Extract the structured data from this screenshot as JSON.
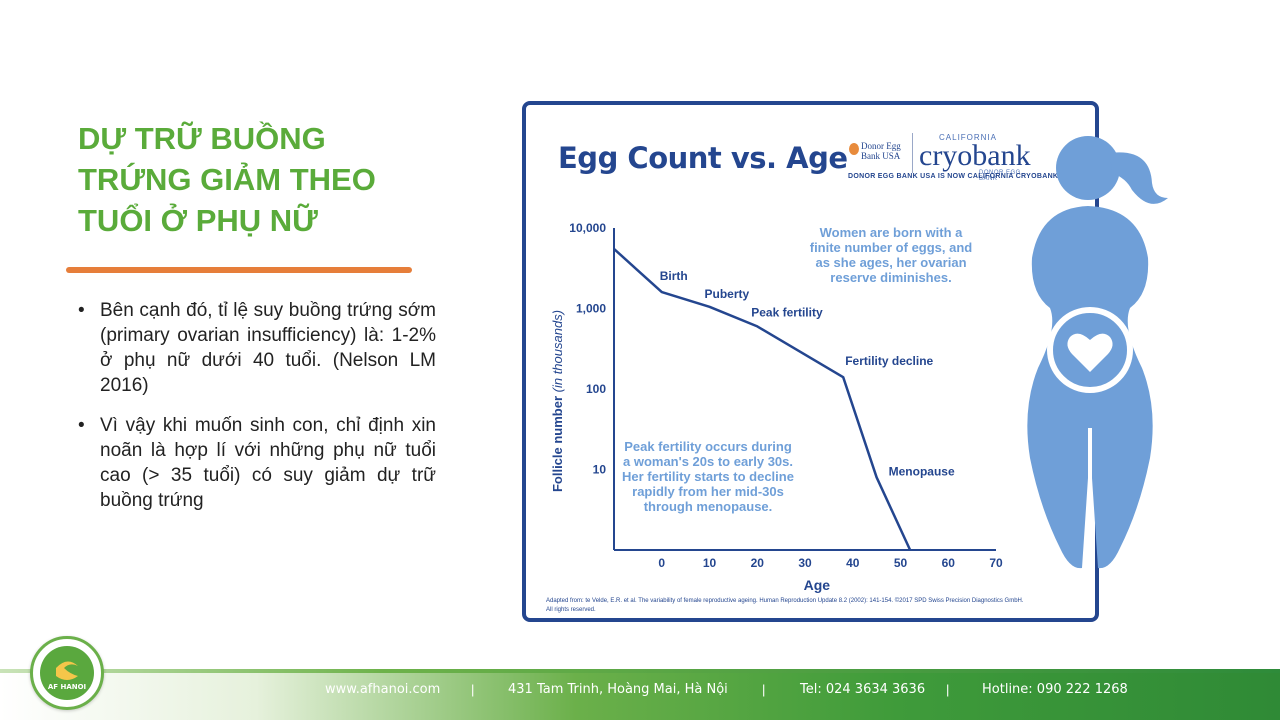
{
  "slide": {
    "title": "DỰ TRỮ BUỒNG TRỨNG GIẢM THEO TUỔI Ở PHỤ NỮ",
    "bullets": [
      "Bên cạnh đó, tỉ lệ suy buồng trứng sớm (primary ovarian insufficiency) là: 1-2% ở phụ nữ dưới 40 tuổi. (Nelson LM 2016)",
      "Vì vậy khi muốn sinh con, chỉ định xin noãn là hợp lí với những phụ nữ tuổi cao (> 35 tuổi) có suy giảm dự trữ buồng trứng"
    ],
    "bullet_glyph": "•",
    "accent_green": "#5aab3a",
    "accent_orange": "#e67e3a"
  },
  "infographic": {
    "title": "Egg Count vs. Age",
    "logo_donor": "Donor Egg Bank USA",
    "logo_california": "CALIFORNIA",
    "logo_cryobank": "cryobank",
    "logo_sub": "DONOR EGG BANK",
    "logo_note": "DONOR EGG BANK USA IS NOW CALIFORNIA CRYOBANK",
    "credit_line1": "Adapted from: te Velde, E.R. et al. The variability of female reproductive ageing.  Human Reproduction Update 8.2 (2002): 141-154. ©2017 SPD Swiss Precision Diagnostics GmbH.",
    "credit_line2": "All rights reserved.",
    "woman_icon": "woman-silhouette-heart-icon",
    "brand_navy": "#24468f",
    "brand_light_blue": "#6f9fd8"
  },
  "chart_data": {
    "type": "line",
    "title": "Egg Count vs. Age",
    "xlabel": "Age",
    "ylabel_main": "Follicle number",
    "ylabel_unit": "(in thousands)",
    "y_scale": "log",
    "x_ticks": [
      0,
      10,
      20,
      30,
      40,
      50,
      60,
      70
    ],
    "y_ticks": [
      {
        "value": 10,
        "label": "10"
      },
      {
        "value": 100,
        "label": "100"
      },
      {
        "value": 1000,
        "label": "1,000"
      },
      {
        "value": 10000,
        "label": "10,000"
      }
    ],
    "xlim": [
      -10,
      70
    ],
    "ylim": [
      1,
      10000
    ],
    "series": [
      {
        "points": [
          {
            "x": -10,
            "y": 5500
          },
          {
            "x": 0,
            "y": 1600
          },
          {
            "x": 10,
            "y": 1050
          },
          {
            "x": 20,
            "y": 600
          },
          {
            "x": 38,
            "y": 140
          },
          {
            "x": 45,
            "y": 8
          },
          {
            "x": 52,
            "y": 1
          }
        ]
      }
    ],
    "annotations": [
      {
        "label": "Birth",
        "x": 0,
        "y": 1600
      },
      {
        "label": "Puberty",
        "x": 10,
        "y": 1050
      },
      {
        "label": "Peak fertility",
        "x": 20,
        "y": 600
      },
      {
        "label": "Fertility decline",
        "x": 38,
        "y": 140
      },
      {
        "label": "Menopause",
        "x": 45,
        "y": 8
      }
    ],
    "notes": [
      "Women are born with a finite number of eggs, and as she ages, her ovarian reserve diminishes.",
      "Peak fertility occurs during a woman's 20s to early 30s. Her fertility starts to decline rapidly from her mid-30s through menopause."
    ],
    "grid": false,
    "line_color": "#24468f",
    "note_color": "#6f9fd8"
  },
  "footer": {
    "website": "www.afhanoi.com",
    "address": "431 Tam Trinh, Hoàng Mai, Hà Nội",
    "tel": "Tel: 024 3634 3636",
    "hotline": "Hotline: 090 222 1268",
    "separator": "|",
    "logo_text": "AF HANOI"
  }
}
